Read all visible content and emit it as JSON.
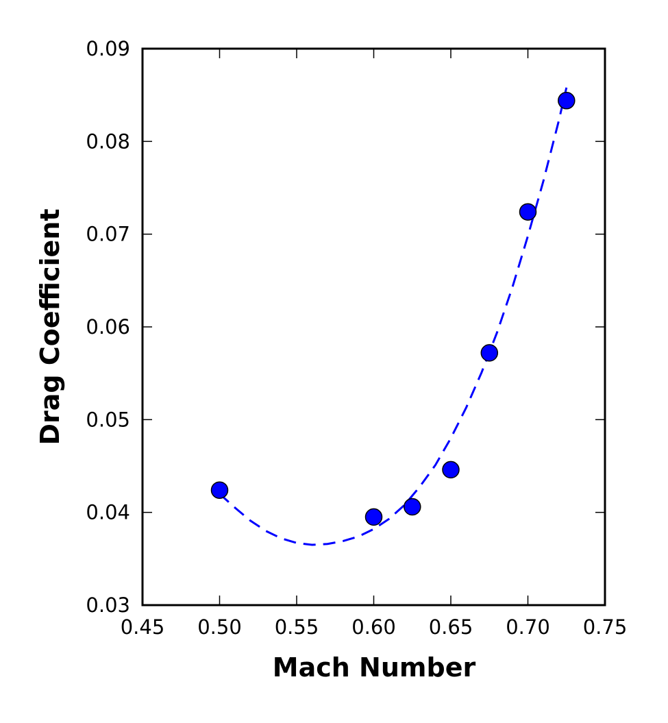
{
  "chart_data": {
    "type": "scatter",
    "xlabel": "Mach Number",
    "ylabel": "Drag Coefficient",
    "xlim": [
      0.45,
      0.75
    ],
    "ylim": [
      0.03,
      0.09
    ],
    "x_ticks": [
      0.45,
      0.5,
      0.55,
      0.6,
      0.65,
      0.7,
      0.75
    ],
    "x_tick_labels": [
      "0.45",
      "0.50",
      "0.55",
      "0.60",
      "0.65",
      "0.70",
      "0.75"
    ],
    "y_ticks": [
      0.03,
      0.04,
      0.05,
      0.06,
      0.07,
      0.08,
      0.09
    ],
    "y_tick_labels": [
      "0.03",
      "0.04",
      "0.05",
      "0.06",
      "0.07",
      "0.08",
      "0.09"
    ],
    "grid": false,
    "series": [
      {
        "kind": "scatter",
        "color": "#0000ff",
        "x": [
          0.5,
          0.6,
          0.625,
          0.65,
          0.675,
          0.7,
          0.725
        ],
        "y": [
          0.0424,
          0.0395,
          0.0406,
          0.0446,
          0.0572,
          0.0724,
          0.0844
        ]
      },
      {
        "kind": "fit-line",
        "style": "dashed",
        "color": "#0000ff",
        "x": [
          0.5,
          0.51,
          0.52,
          0.53,
          0.54,
          0.55,
          0.56,
          0.57,
          0.58,
          0.59,
          0.6,
          0.61,
          0.62,
          0.63,
          0.64,
          0.65,
          0.66,
          0.67,
          0.68,
          0.69,
          0.7,
          0.71,
          0.72,
          0.725
        ],
        "y": [
          0.042,
          0.0405,
          0.0391,
          0.038,
          0.0372,
          0.0367,
          0.0365,
          0.0366,
          0.0369,
          0.0374,
          0.0382,
          0.0393,
          0.0408,
          0.0428,
          0.0451,
          0.048,
          0.0513,
          0.0551,
          0.0594,
          0.0643,
          0.0698,
          0.0757,
          0.0822,
          0.0858
        ]
      }
    ]
  }
}
